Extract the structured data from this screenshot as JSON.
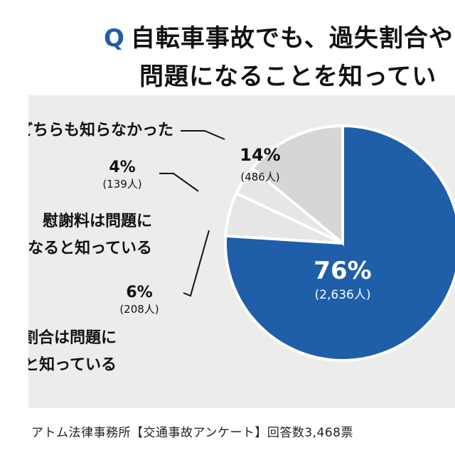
{
  "title": {
    "q_mark": "Q",
    "line1": "自転車事故でも、過失割合や",
    "line2": "問題になることを知ってい"
  },
  "chart_data": {
    "type": "pie",
    "slices": [
      {
        "key": "both",
        "label": "",
        "percent_label": "76%",
        "count_label": "(2,636人)",
        "value": 2636,
        "color": "#1f5ea8",
        "text_color": "#ffffff"
      },
      {
        "key": "fault",
        "label_lines": [
          "過失割合は問題に",
          "なると知っている"
        ],
        "percent_label": "6%",
        "count_label": "(208人)",
        "value": 208,
        "color": "#e6e6e6",
        "text_color": "#111111"
      },
      {
        "key": "consolation",
        "label_lines": [
          "慰謝料は問題に",
          "なると知っている"
        ],
        "percent_label": "4%",
        "count_label": "(139人)",
        "value": 139,
        "color": "#e6e6e6",
        "text_color": "#111111"
      },
      {
        "key": "neither",
        "label_lines": [
          "どちらも知らなかった"
        ],
        "percent_label": "14%",
        "count_label": "(486人)",
        "value": 486,
        "color": "#d6d6d6",
        "text_color": "#111111"
      }
    ]
  },
  "footer": "アトム法律事務所【交通事故アンケート】回答数3,468票"
}
